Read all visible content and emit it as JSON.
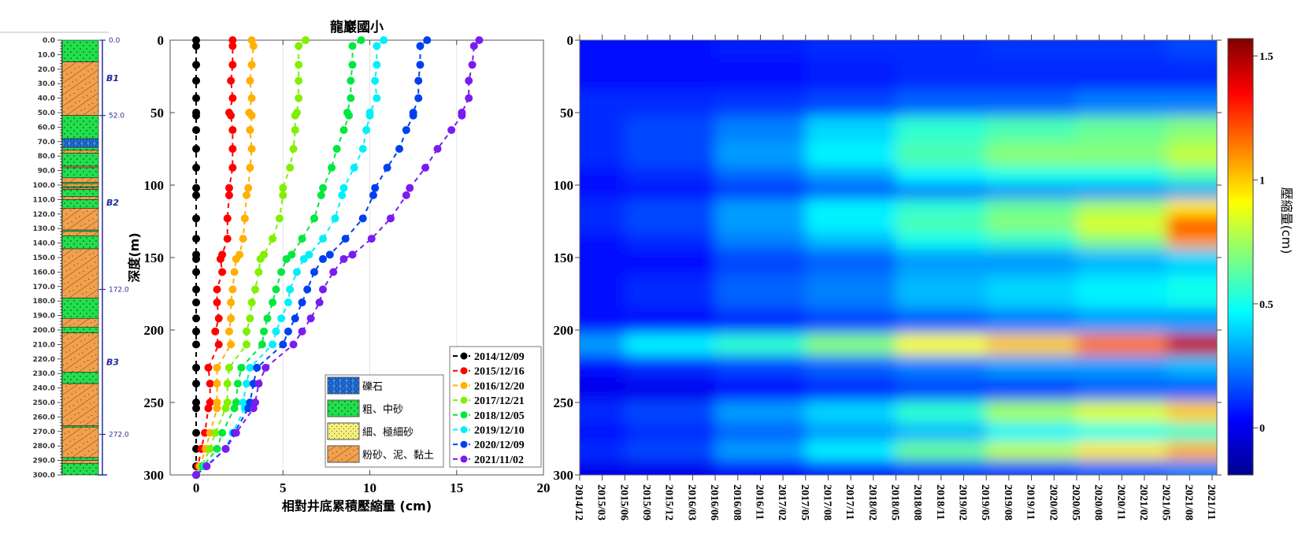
{
  "chart_data": [
    {
      "type": "table",
      "ylim": [
        0,
        300
      ],
      "depth_ticks": [
        0,
        10,
        20,
        30,
        40,
        50,
        60,
        70,
        80,
        90,
        100,
        110,
        120,
        130,
        140,
        150,
        160,
        170,
        180,
        190,
        200,
        210,
        220,
        230,
        240,
        250,
        260,
        270,
        280,
        290,
        300
      ],
      "layers": [
        {
          "top": 0,
          "bottom": 15,
          "type": "sand"
        },
        {
          "top": 15,
          "bottom": 52,
          "type": "clay"
        },
        {
          "top": 52,
          "bottom": 68,
          "type": "sand"
        },
        {
          "top": 68,
          "bottom": 74,
          "type": "gravel"
        },
        {
          "top": 74,
          "bottom": 76,
          "type": "sand"
        },
        {
          "top": 76,
          "bottom": 78,
          "type": "clay"
        },
        {
          "top": 78,
          "bottom": 87,
          "type": "sand"
        },
        {
          "top": 87,
          "bottom": 88,
          "type": "clay"
        },
        {
          "top": 88,
          "bottom": 95,
          "type": "sand"
        },
        {
          "top": 95,
          "bottom": 98,
          "type": "clay"
        },
        {
          "top": 98,
          "bottom": 99,
          "type": "sand"
        },
        {
          "top": 99,
          "bottom": 101,
          "type": "clay"
        },
        {
          "top": 101,
          "bottom": 102,
          "type": "sand"
        },
        {
          "top": 102,
          "bottom": 103,
          "type": "clay"
        },
        {
          "top": 103,
          "bottom": 108,
          "type": "sand"
        },
        {
          "top": 108,
          "bottom": 110,
          "type": "clay"
        },
        {
          "top": 110,
          "bottom": 116,
          "type": "sand"
        },
        {
          "top": 116,
          "bottom": 131,
          "type": "clay"
        },
        {
          "top": 131,
          "bottom": 132,
          "type": "sand"
        },
        {
          "top": 132,
          "bottom": 135,
          "type": "clay"
        },
        {
          "top": 135,
          "bottom": 144,
          "type": "sand"
        },
        {
          "top": 144,
          "bottom": 178,
          "type": "clay"
        },
        {
          "top": 178,
          "bottom": 192,
          "type": "sand"
        },
        {
          "top": 192,
          "bottom": 198,
          "type": "clay"
        },
        {
          "top": 198,
          "bottom": 202,
          "type": "sand"
        },
        {
          "top": 202,
          "bottom": 229,
          "type": "clay"
        },
        {
          "top": 229,
          "bottom": 237,
          "type": "sand"
        },
        {
          "top": 237,
          "bottom": 266,
          "type": "clay"
        },
        {
          "top": 266,
          "bottom": 267,
          "type": "sand"
        },
        {
          "top": 267,
          "bottom": 288,
          "type": "clay"
        },
        {
          "top": 288,
          "bottom": 290,
          "type": "sand"
        },
        {
          "top": 290,
          "bottom": 292,
          "type": "clay"
        },
        {
          "top": 292,
          "bottom": 300,
          "type": "sand"
        }
      ],
      "units": [
        {
          "name": "B1",
          "top": 0,
          "bottom": 52
        },
        {
          "name": "B2",
          "top": 52,
          "bottom": 172
        },
        {
          "name": "B3",
          "top": 172,
          "bottom": 272
        }
      ],
      "boundary_labels": [
        {
          "depth": 0,
          "label": "0.0"
        },
        {
          "depth": 52,
          "label": "52.0"
        },
        {
          "depth": 172,
          "label": "172.0"
        },
        {
          "depth": 272,
          "label": "272.0"
        }
      ],
      "lithology_legend": [
        {
          "type": "gravel",
          "label": "礫石"
        },
        {
          "type": "sand",
          "label": "粗、中砂"
        },
        {
          "type": "fine",
          "label": "細、極細砂"
        },
        {
          "type": "clay",
          "label": "粉砂、泥、黏土"
        }
      ],
      "colors": {
        "sand": "#22e04a",
        "clay": "#f4a04a",
        "gravel": "#3f86d6",
        "fine": "#f6f07a",
        "unit_axis": "#2b2f9a"
      }
    },
    {
      "type": "line",
      "title": "龍巖國小",
      "xlabel": "相對井底累積壓縮量 (cm)",
      "ylabel": "深度(m)",
      "xlim": [
        -1.5,
        20
      ],
      "ylim": [
        300,
        0
      ],
      "xticks": [
        0,
        5,
        10,
        15,
        20
      ],
      "yticks": [
        0,
        50,
        100,
        150,
        200,
        250,
        300
      ],
      "grid": "vertical",
      "legend_position": "bottom-right",
      "depth": [
        0,
        4,
        17,
        28,
        40,
        50,
        52,
        62,
        75,
        88,
        102,
        107,
        123,
        137,
        148,
        151,
        160,
        172,
        181,
        192,
        201,
        210,
        226,
        237,
        250,
        254,
        271,
        282,
        294,
        300
      ],
      "series": [
        {
          "name": "2014/12/09",
          "color": "#000000",
          "values": [
            0,
            0,
            0,
            0,
            0,
            0,
            0,
            0,
            0,
            0,
            0,
            0,
            0,
            0,
            0,
            0,
            0,
            0,
            0,
            0,
            0,
            0,
            0,
            0,
            0,
            0,
            0,
            0,
            0,
            0
          ]
        },
        {
          "name": "2015/12/16",
          "color": "#ff0000",
          "values": [
            2.1,
            2.1,
            2.1,
            2.0,
            2.1,
            1.9,
            2.0,
            2.1,
            2.1,
            2.1,
            1.9,
            1.9,
            1.8,
            1.8,
            1.5,
            1.4,
            1.5,
            1.2,
            1.2,
            1.3,
            1.1,
            1.3,
            0.7,
            0.8,
            0.8,
            0.7,
            0.5,
            0.3,
            0.1,
            0
          ]
        },
        {
          "name": "2016/12/20",
          "color": "#ffb000",
          "values": [
            3.2,
            3.3,
            3.2,
            3.1,
            3.2,
            3.05,
            3.2,
            3.1,
            3.2,
            3.1,
            3.0,
            2.9,
            2.8,
            2.7,
            2.5,
            2.3,
            2.2,
            2.1,
            2.0,
            2.0,
            1.9,
            2.0,
            1.2,
            1.2,
            1.2,
            1.2,
            0.8,
            0.55,
            0.2,
            0
          ]
        },
        {
          "name": "2017/12/21",
          "color": "#80f000",
          "values": [
            6.3,
            5.9,
            5.9,
            5.9,
            5.9,
            5.8,
            5.7,
            5.7,
            5.6,
            5.4,
            5.0,
            5.0,
            4.8,
            4.4,
            3.9,
            3.7,
            3.6,
            3.4,
            3.2,
            3.1,
            2.9,
            2.9,
            1.9,
            1.8,
            1.8,
            1.7,
            1.1,
            0.8,
            0.3,
            0
          ]
        },
        {
          "name": "2018/12/05",
          "color": "#00e840",
          "values": [
            9.5,
            9.0,
            9.0,
            8.9,
            8.9,
            8.7,
            8.8,
            8.5,
            8.1,
            7.8,
            7.3,
            7.2,
            6.8,
            6.1,
            5.5,
            5.2,
            4.9,
            4.6,
            4.4,
            4.1,
            3.9,
            3.8,
            2.6,
            2.4,
            2.3,
            2.2,
            1.5,
            1.2,
            0.4,
            0
          ]
        },
        {
          "name": "2019/12/10",
          "color": "#00f0f8",
          "values": [
            10.8,
            10.4,
            10.4,
            10.3,
            10.4,
            10.0,
            10.0,
            9.8,
            9.6,
            9.1,
            8.5,
            8.4,
            8.0,
            7.3,
            6.5,
            6.2,
            5.8,
            5.4,
            5.3,
            4.9,
            4.6,
            4.4,
            3.1,
            2.9,
            2.7,
            2.8,
            2.1,
            1.7,
            0.5,
            0
          ]
        },
        {
          "name": "2020/12/09",
          "color": "#0040f0",
          "values": [
            13.3,
            12.9,
            12.9,
            12.8,
            12.8,
            12.5,
            12.5,
            12.1,
            11.7,
            11.0,
            10.3,
            10.2,
            9.6,
            8.6,
            7.7,
            7.3,
            6.8,
            6.4,
            6.1,
            5.7,
            5.3,
            5.0,
            3.5,
            3.3,
            3.1,
            3.0,
            2.2,
            1.7,
            0.6,
            0
          ]
        },
        {
          "name": "2021/11/02",
          "color": "#7a1cf0",
          "values": [
            16.3,
            16.0,
            15.9,
            15.7,
            15.7,
            15.3,
            15.3,
            14.7,
            13.9,
            13.2,
            12.3,
            12.1,
            11.2,
            10.1,
            9.0,
            8.5,
            7.9,
            7.3,
            7.1,
            6.6,
            6.1,
            5.6,
            4.0,
            3.6,
            3.4,
            3.3,
            2.3,
            1.7,
            0.6,
            0
          ]
        }
      ]
    },
    {
      "type": "heatmap",
      "colorbar_label": "壓縮量(cm)",
      "colormap": "jet",
      "color_range": [
        -0.19,
        1.57
      ],
      "colorbar_ticks": [
        0,
        0.5,
        1,
        1.5
      ],
      "ylim": [
        300,
        0
      ],
      "yticks": [
        0,
        50,
        100,
        150,
        200,
        250,
        300
      ],
      "x_tick_labels": [
        "2014/12",
        "2015/03",
        "2015/06",
        "2015/09",
        "2015/12",
        "2016/03",
        "2016/06",
        "2016/08",
        "2016/11",
        "2017/02",
        "2017/05",
        "2017/08",
        "2017/11",
        "2018/02",
        "2018/05",
        "2018/08",
        "2018/11",
        "2019/02",
        "2019/05",
        "2019/08",
        "2019/11",
        "2020/02",
        "2020/05",
        "2020/08",
        "2020/11",
        "2021/02",
        "2021/05",
        "2021/08",
        "2021/11"
      ],
      "x": [
        "2014/12",
        "2015/12",
        "2016/11",
        "2017/11",
        "2018/11",
        "2019/11",
        "2020/11",
        "2021/11"
      ],
      "y": [
        0,
        25,
        45,
        60,
        80,
        95,
        104,
        115,
        128,
        138,
        150,
        175,
        195,
        210,
        225,
        240,
        258,
        270,
        284,
        296
      ],
      "values": [
        [
          0.05,
          0.05,
          0.08,
          0.1,
          0.1,
          0.12,
          0.12,
          0.15
        ],
        [
          0.05,
          0.05,
          0.05,
          0.08,
          0.1,
          0.1,
          0.1,
          0.1
        ],
        [
          0.1,
          0.1,
          0.12,
          0.15,
          0.2,
          0.2,
          0.25,
          0.25
        ],
        [
          0.1,
          0.15,
          0.25,
          0.4,
          0.55,
          0.6,
          0.65,
          0.7
        ],
        [
          0.1,
          0.15,
          0.3,
          0.45,
          0.6,
          0.7,
          0.7,
          0.8
        ],
        [
          0.05,
          0.1,
          0.2,
          0.3,
          0.45,
          0.5,
          0.5,
          0.6
        ],
        [
          0.05,
          0.05,
          0.1,
          0.15,
          0.2,
          0.25,
          0.25,
          0.3
        ],
        [
          0.1,
          0.15,
          0.3,
          0.45,
          0.55,
          0.65,
          0.75,
          0.95
        ],
        [
          0.1,
          0.15,
          0.3,
          0.45,
          0.6,
          0.7,
          0.85,
          1.2
        ],
        [
          0.05,
          0.1,
          0.25,
          0.35,
          0.5,
          0.55,
          0.7,
          1.1
        ],
        [
          0.05,
          0.05,
          0.15,
          0.2,
          0.3,
          0.3,
          0.35,
          0.4
        ],
        [
          0.05,
          0.1,
          0.2,
          0.25,
          0.35,
          0.4,
          0.45,
          0.5
        ],
        [
          0.05,
          0.05,
          0.1,
          0.15,
          0.2,
          0.25,
          0.3,
          0.3
        ],
        [
          0.3,
          0.45,
          0.55,
          0.7,
          0.9,
          1.0,
          1.15,
          1.45
        ],
        [
          0.05,
          0.1,
          0.15,
          0.2,
          0.25,
          0.3,
          0.3,
          0.35
        ],
        [
          0.0,
          0.0,
          0.05,
          0.1,
          0.15,
          0.15,
          0.2,
          0.2
        ],
        [
          0.1,
          0.15,
          0.3,
          0.4,
          0.55,
          0.75,
          0.85,
          1.0
        ],
        [
          0.05,
          0.1,
          0.2,
          0.3,
          0.35,
          0.45,
          0.5,
          0.55
        ],
        [
          0.1,
          0.15,
          0.3,
          0.45,
          0.65,
          0.8,
          0.95,
          1.05
        ],
        [
          0.0,
          0.0,
          0.05,
          0.1,
          0.15,
          0.15,
          0.2,
          0.25
        ]
      ]
    }
  ]
}
